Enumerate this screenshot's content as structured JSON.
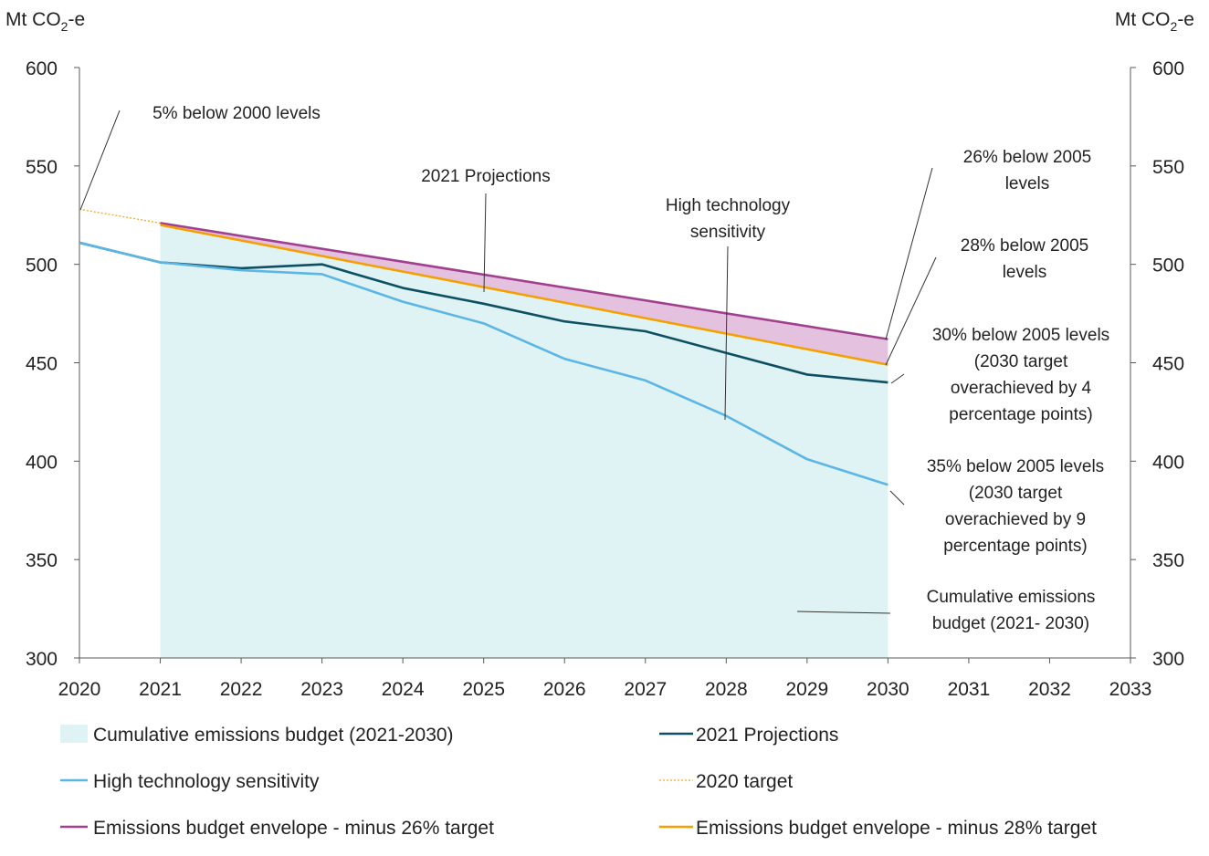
{
  "chart_data": {
    "type": "line",
    "x_axis": {
      "min": 2020,
      "max": 2033,
      "ticks": [
        "2020",
        "2021",
        "2022",
        "2023",
        "2024",
        "2025",
        "2026",
        "2027",
        "2028",
        "2029",
        "2030",
        "2031",
        "2032",
        "2033"
      ]
    },
    "y_axis": {
      "min": 300,
      "max": 600,
      "ticks": [
        "300",
        "350",
        "400",
        "450",
        "500",
        "550",
        "600"
      ],
      "left_label": "Mt CO",
      "right_label": "Mt CO",
      "label_subscript": "2",
      "label_suffix": "-e"
    },
    "series": [
      {
        "name": "Cumulative emissions budget (2021-2030)",
        "kind": "area",
        "color": "#dff3f4",
        "x": [
          2021,
          2022,
          2023,
          2024,
          2025,
          2026,
          2027,
          2028,
          2029,
          2030
        ],
        "values": [
          520,
          512,
          504,
          496,
          488,
          480,
          472,
          465,
          457,
          449
        ]
      },
      {
        "name": "2021 Projections",
        "kind": "line",
        "color": "#0d4f63",
        "x": [
          2020,
          2021,
          2022,
          2023,
          2024,
          2025,
          2026,
          2027,
          2028,
          2029,
          2030
        ],
        "values": [
          511,
          501,
          498,
          500,
          488,
          480,
          471,
          466,
          455,
          444,
          440
        ]
      },
      {
        "name": "High technology sensitivity",
        "kind": "line",
        "color": "#5bb5e6",
        "x": [
          2020,
          2021,
          2022,
          2023,
          2024,
          2025,
          2026,
          2027,
          2028,
          2029,
          2030
        ],
        "values": [
          511,
          501,
          497,
          495,
          481,
          470,
          452,
          441,
          423,
          401,
          388
        ]
      },
      {
        "name": "2020 target",
        "kind": "dotted",
        "color": "#f5a623",
        "x": [
          2020,
          2021
        ],
        "values": [
          528,
          521
        ]
      },
      {
        "name": "Emissions budget envelope - minus 26% target",
        "kind": "line",
        "color": "#a0408f",
        "x": [
          2021,
          2030
        ],
        "values": [
          521,
          462
        ]
      },
      {
        "name": "Emissions budget envelope - minus 28% target",
        "kind": "line",
        "color": "#f5a000",
        "x": [
          2021,
          2030
        ],
        "values": [
          520,
          449
        ]
      }
    ],
    "envelope_fill_color": "#e4c2df",
    "annotations": [
      {
        "id": "ann-5pct-2000",
        "lines": [
          "5% below 2000 levels"
        ]
      },
      {
        "id": "ann-2021-projections",
        "lines": [
          "2021 Projections"
        ]
      },
      {
        "id": "ann-high-tech",
        "lines": [
          "High technology",
          "sensitivity"
        ]
      },
      {
        "id": "ann-26pct",
        "lines": [
          "26% below 2005",
          "levels"
        ]
      },
      {
        "id": "ann-28pct",
        "lines": [
          "28% below 2005",
          "levels"
        ]
      },
      {
        "id": "ann-30pct",
        "lines": [
          "30% below 2005 levels",
          "(2030 target",
          "overachieved by 4",
          "percentage points)"
        ]
      },
      {
        "id": "ann-35pct",
        "lines": [
          "35% below 2005 levels",
          "(2030 target",
          "overachieved by 9",
          "percentage points)"
        ]
      },
      {
        "id": "ann-budget",
        "lines": [
          "Cumulative emissions",
          "budget (2021- 2030)"
        ]
      }
    ],
    "legend": [
      {
        "label": "Cumulative emissions budget (2021-2030)",
        "style": "area",
        "color": "#dff3f4"
      },
      {
        "label": "2021 Projections",
        "style": "line",
        "color": "#0d4f63"
      },
      {
        "label": "High technology sensitivity",
        "style": "line",
        "color": "#5bb5e6"
      },
      {
        "label": "2020 target",
        "style": "dotted",
        "color": "#f5a623"
      },
      {
        "label": "Emissions budget envelope - minus 26% target",
        "style": "line",
        "color": "#a0408f"
      },
      {
        "label": "Emissions budget envelope - minus 28% target",
        "style": "line",
        "color": "#f5a000"
      }
    ]
  }
}
